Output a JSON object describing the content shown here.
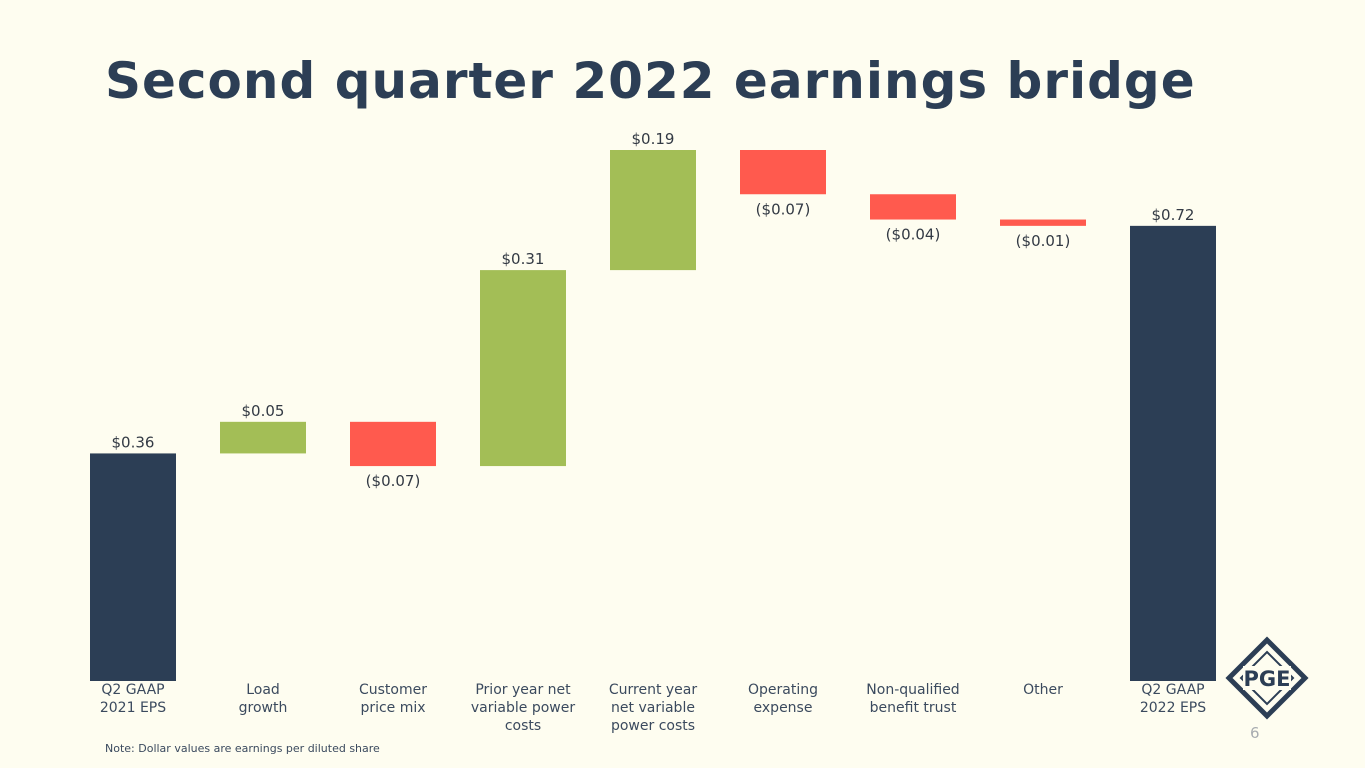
{
  "title": "Second quarter 2022 earnings bridge",
  "note": "Note: Dollar values are earnings per diluted share",
  "page_number": "6",
  "logo": "PGE",
  "chart_data": {
    "type": "waterfall",
    "categories": [
      "Q2 GAAP\n2021 EPS",
      "Load\ngrowth",
      "Customer\nprice mix",
      "Prior year net\nvariable power\ncosts",
      "Current year\nnet variable\npower costs",
      "Operating\nexpense",
      "Non-qualified\nbenefit trust",
      "Other",
      "Q2 GAAP\n2022 EPS"
    ],
    "values": [
      0.36,
      0.05,
      -0.07,
      0.31,
      0.19,
      -0.07,
      -0.04,
      -0.01,
      0.72
    ],
    "value_labels": [
      "$0.36",
      "$0.05",
      "($0.07)",
      "$0.31",
      "$0.19",
      "($0.07)",
      "($0.04)",
      "($0.01)",
      "$0.72"
    ],
    "total_bars": [
      0,
      8
    ],
    "colors": {
      "total": "#2c3e55",
      "increase": "#a3be56",
      "decrease": "#ff5a4e"
    }
  }
}
